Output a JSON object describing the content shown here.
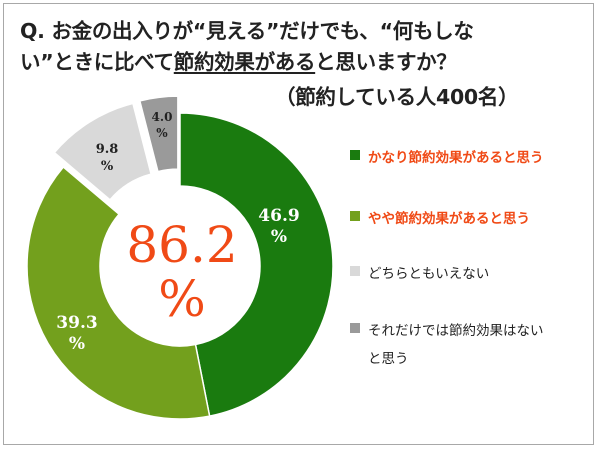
{
  "question": {
    "line1": "Q.  お金の出入りが“見える”だけでも、“何もしな",
    "line2_prefix": "い”ときに比べて",
    "line2_underlined": "節約効果がある",
    "line2_suffix": "と思いますか？",
    "line3": "（節約している人400名）"
  },
  "center_label": {
    "value": "86.2",
    "unit": "%"
  },
  "colors": {
    "dark_green": "#1a7b0f",
    "olive_green": "#73a01d",
    "light_gray": "#d9d9d9",
    "mid_gray": "#9a9a9a",
    "highlight_red": "#f04a16",
    "text_dark": "#222222",
    "label_white": "#ffffff"
  },
  "chart_data": {
    "type": "pie",
    "style": "donut",
    "series": [
      {
        "name": "かなり節約効果があると思う",
        "value": 46.9,
        "label": "46.9",
        "unit": "%",
        "color": "#1a7b0f",
        "legend_highlight": true,
        "exploded": false
      },
      {
        "name": "やや節約効果があると思う",
        "value": 39.3,
        "label": "39.3",
        "unit": "%",
        "color": "#73a01d",
        "legend_highlight": true,
        "exploded": false
      },
      {
        "name": "どちらともいえない",
        "value": 9.8,
        "label": "9.8",
        "unit": "%",
        "color": "#d9d9d9",
        "legend_highlight": false,
        "exploded": true
      },
      {
        "name": "それだけでは節約効果はないと思う",
        "value": 4.0,
        "label": "4.0",
        "unit": "%",
        "color": "#9a9a9a",
        "legend_highlight": false,
        "exploded": true
      }
    ],
    "legend": {
      "placement": "right",
      "items": [
        {
          "lines": [
            "かなり節約効果があると思う"
          ]
        },
        {
          "lines": [
            "やや節約効果があると思う"
          ]
        },
        {
          "lines": [
            "どちらともいえない"
          ]
        },
        {
          "lines": [
            "それだけでは節約効果はない",
            "と思う"
          ]
        }
      ]
    }
  }
}
